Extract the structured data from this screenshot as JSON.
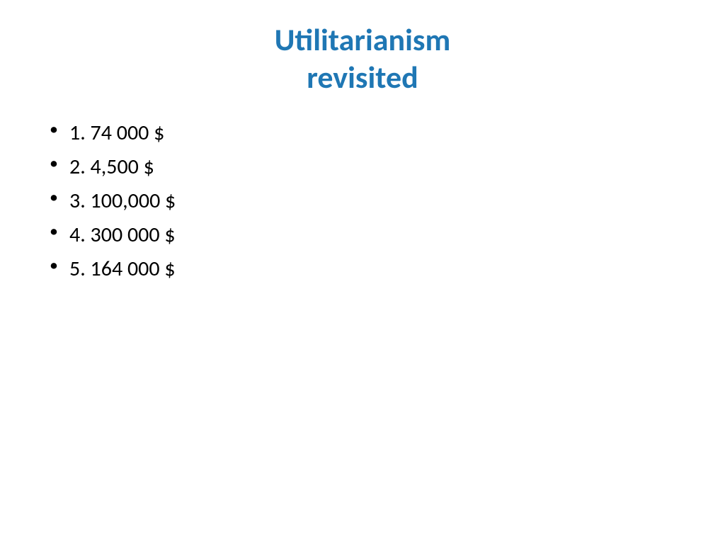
{
  "title": {
    "line1": "Utilitarianism",
    "line2": "revisited"
  },
  "items": [
    "1. 74 000 $",
    "2. 4,500 $",
    "3. 100,000 $",
    "4. 300 000 $",
    "5. 164 000 $"
  ],
  "colors": {
    "title": "#1f77b4",
    "text": "#000000",
    "background": "#ffffff"
  },
  "typography": {
    "title_fontsize": 44,
    "body_fontsize": 30,
    "font_family": "Calibri"
  }
}
